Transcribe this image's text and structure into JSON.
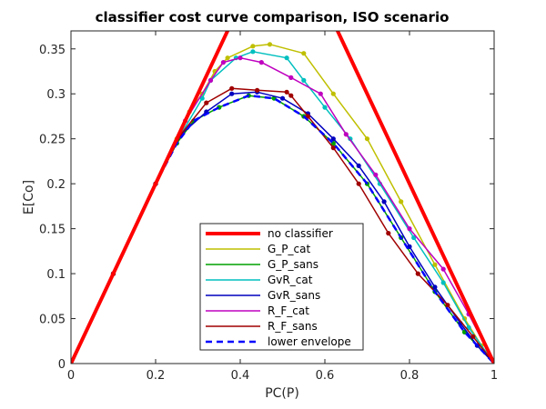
{
  "chart_data": {
    "type": "line",
    "title": "classifier cost curve comparison, ISO scenario",
    "xlabel": "PC(P)",
    "ylabel": "E[Co]",
    "xlim": [
      0,
      1
    ],
    "ylim": [
      0,
      0.37
    ],
    "xticks": [
      0,
      0.2,
      0.4,
      0.6,
      0.8,
      1
    ],
    "xtick_labels": [
      "0",
      "0.2",
      "0.4",
      "0.6",
      "0.8",
      "1"
    ],
    "yticks": [
      0,
      0.05,
      0.1,
      0.15,
      0.2,
      0.25,
      0.3,
      0.35
    ],
    "ytick_labels": [
      "0",
      "0.05",
      "0.1",
      "0.15",
      "0.2",
      "0.25",
      "0.3",
      "0.35"
    ],
    "grid": false,
    "legend_position": "lower center",
    "series": [
      {
        "name": "no classifier",
        "color": "#ff0000",
        "style": "solid",
        "width": 4,
        "markers": false,
        "x": [
          0,
          0.5,
          1
        ],
        "y": [
          0,
          0.5,
          0
        ]
      },
      {
        "name": "G_P_cat",
        "color": "#bfbf00",
        "style": "solid",
        "width": 1.5,
        "markers": true,
        "x": [
          0,
          0.1,
          0.2,
          0.25,
          0.28,
          0.31,
          0.34,
          0.37,
          0.43,
          0.47,
          0.55,
          0.62,
          0.7,
          0.78,
          0.86,
          0.93,
          0.97,
          1
        ],
        "y": [
          0,
          0.1,
          0.2,
          0.25,
          0.28,
          0.3,
          0.325,
          0.34,
          0.353,
          0.355,
          0.345,
          0.3,
          0.25,
          0.18,
          0.11,
          0.05,
          0.02,
          0
        ]
      },
      {
        "name": "G_P_sans",
        "color": "#00a000",
        "style": "solid",
        "width": 1.5,
        "markers": true,
        "x": [
          0,
          0.1,
          0.2,
          0.25,
          0.29,
          0.35,
          0.42,
          0.48,
          0.55,
          0.62,
          0.7,
          0.78,
          0.86,
          0.93,
          1
        ],
        "y": [
          0,
          0.1,
          0.2,
          0.245,
          0.27,
          0.285,
          0.298,
          0.295,
          0.275,
          0.245,
          0.2,
          0.14,
          0.08,
          0.035,
          0
        ]
      },
      {
        "name": "GvR_cat",
        "color": "#00bfbf",
        "style": "solid",
        "width": 1.5,
        "markers": true,
        "x": [
          0,
          0.1,
          0.2,
          0.26,
          0.31,
          0.33,
          0.39,
          0.43,
          0.51,
          0.55,
          0.6,
          0.66,
          0.73,
          0.81,
          0.88,
          0.94,
          1
        ],
        "y": [
          0,
          0.1,
          0.2,
          0.255,
          0.295,
          0.315,
          0.34,
          0.347,
          0.34,
          0.315,
          0.285,
          0.25,
          0.2,
          0.14,
          0.09,
          0.04,
          0
        ]
      },
      {
        "name": "GvR_sans",
        "color": "#0000bf",
        "style": "solid",
        "width": 1.5,
        "markers": true,
        "x": [
          0,
          0.1,
          0.2,
          0.26,
          0.32,
          0.38,
          0.44,
          0.5,
          0.56,
          0.62,
          0.68,
          0.74,
          0.8,
          0.86,
          0.92,
          0.96,
          1
        ],
        "y": [
          0,
          0.1,
          0.2,
          0.255,
          0.28,
          0.3,
          0.302,
          0.295,
          0.278,
          0.25,
          0.22,
          0.18,
          0.13,
          0.085,
          0.045,
          0.02,
          0
        ]
      },
      {
        "name": "R_F_cat",
        "color": "#bf00bf",
        "style": "solid",
        "width": 1.5,
        "markers": true,
        "x": [
          0,
          0.1,
          0.2,
          0.27,
          0.33,
          0.36,
          0.4,
          0.45,
          0.52,
          0.59,
          0.65,
          0.72,
          0.8,
          0.88,
          0.94,
          1
        ],
        "y": [
          0,
          0.1,
          0.2,
          0.27,
          0.315,
          0.335,
          0.34,
          0.335,
          0.318,
          0.3,
          0.255,
          0.21,
          0.15,
          0.105,
          0.055,
          0
        ]
      },
      {
        "name": "R_F_sans",
        "color": "#a00000",
        "style": "solid",
        "width": 1.5,
        "markers": true,
        "x": [
          0,
          0.1,
          0.2,
          0.26,
          0.32,
          0.38,
          0.44,
          0.51,
          0.52,
          0.56,
          0.62,
          0.68,
          0.75,
          0.82,
          0.89,
          0.95,
          1
        ],
        "y": [
          0,
          0.1,
          0.2,
          0.255,
          0.29,
          0.306,
          0.304,
          0.302,
          0.298,
          0.275,
          0.24,
          0.2,
          0.145,
          0.1,
          0.065,
          0.03,
          0
        ]
      },
      {
        "name": "lower envelope",
        "color": "#0000ff",
        "style": "dashed",
        "width": 2.5,
        "markers": false,
        "x": [
          0,
          0.1,
          0.2,
          0.25,
          0.29,
          0.35,
          0.42,
          0.48,
          0.55,
          0.62,
          0.7,
          0.78,
          0.86,
          0.93,
          1
        ],
        "y": [
          0,
          0.1,
          0.2,
          0.245,
          0.27,
          0.285,
          0.298,
          0.295,
          0.275,
          0.245,
          0.2,
          0.14,
          0.08,
          0.035,
          0
        ]
      }
    ]
  }
}
